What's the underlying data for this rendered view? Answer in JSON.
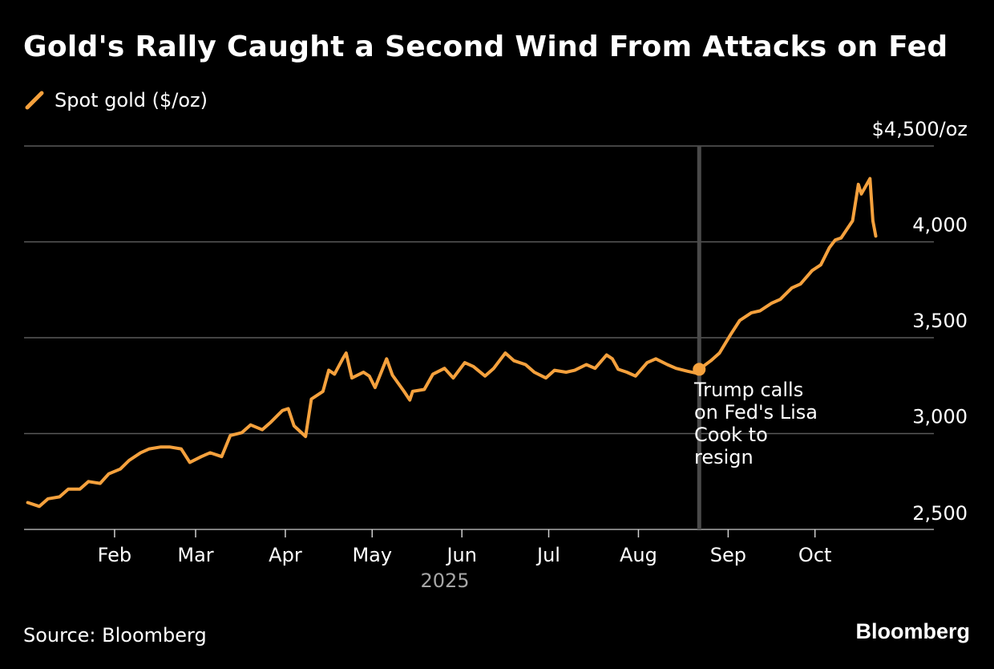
{
  "title": "Gold's Rally Caught a Second Wind From Attacks on Fed",
  "legend": {
    "label": "Spot gold ($/oz)"
  },
  "source": "Source: Bloomberg",
  "logo": "Bloomberg",
  "colors": {
    "line": "#f5a13d",
    "grid": "#5a5a5a",
    "marker": "#4a4a4a",
    "year": "#a6a6a6"
  },
  "chart_data": {
    "type": "line",
    "title": "Gold's Rally Caught a Second Wind From Attacks on Fed",
    "series": [
      {
        "name": "Spot gold ($/oz)",
        "x": [
          "2025-01-02",
          "2025-01-06",
          "2025-01-09",
          "2025-01-13",
          "2025-01-16",
          "2025-01-20",
          "2025-01-23",
          "2025-01-27",
          "2025-01-30",
          "2025-02-03",
          "2025-02-06",
          "2025-02-10",
          "2025-02-13",
          "2025-02-17",
          "2025-02-20",
          "2025-02-24",
          "2025-02-27",
          "2025-03-03",
          "2025-03-06",
          "2025-03-10",
          "2025-03-13",
          "2025-03-17",
          "2025-03-20",
          "2025-03-24",
          "2025-03-27",
          "2025-03-31",
          "2025-04-02",
          "2025-04-04",
          "2025-04-08",
          "2025-04-10",
          "2025-04-14",
          "2025-04-16",
          "2025-04-18",
          "2025-04-21",
          "2025-04-22",
          "2025-04-24",
          "2025-04-28",
          "2025-04-30",
          "2025-05-02",
          "2025-05-06",
          "2025-05-08",
          "2025-05-12",
          "2025-05-14",
          "2025-05-15",
          "2025-05-19",
          "2025-05-22",
          "2025-05-26",
          "2025-05-29",
          "2025-06-02",
          "2025-06-05",
          "2025-06-09",
          "2025-06-12",
          "2025-06-16",
          "2025-06-19",
          "2025-06-23",
          "2025-06-26",
          "2025-06-30",
          "2025-07-03",
          "2025-07-07",
          "2025-07-10",
          "2025-07-14",
          "2025-07-17",
          "2025-07-21",
          "2025-07-23",
          "2025-07-25",
          "2025-07-28",
          "2025-07-31",
          "2025-08-04",
          "2025-08-07",
          "2025-08-11",
          "2025-08-14",
          "2025-08-18",
          "2025-08-21",
          "2025-08-22",
          "2025-08-26",
          "2025-08-29",
          "2025-09-02",
          "2025-09-05",
          "2025-09-09",
          "2025-09-12",
          "2025-09-16",
          "2025-09-19",
          "2025-09-23",
          "2025-09-26",
          "2025-09-30",
          "2025-10-03",
          "2025-10-06",
          "2025-10-08",
          "2025-10-10",
          "2025-10-14",
          "2025-10-16",
          "2025-10-17",
          "2025-10-20",
          "2025-10-21",
          "2025-10-22"
        ],
        "values": [
          2640,
          2620,
          2660,
          2670,
          2710,
          2710,
          2750,
          2740,
          2790,
          2815,
          2860,
          2900,
          2920,
          2930,
          2930,
          2920,
          2850,
          2880,
          2900,
          2880,
          2990,
          3005,
          3045,
          3020,
          3060,
          3120,
          3130,
          3040,
          2985,
          3180,
          3220,
          3330,
          3310,
          3395,
          3420,
          3290,
          3320,
          3300,
          3240,
          3390,
          3305,
          3220,
          3175,
          3220,
          3230,
          3310,
          3340,
          3290,
          3370,
          3350,
          3300,
          3340,
          3420,
          3380,
          3360,
          3320,
          3290,
          3330,
          3320,
          3330,
          3360,
          3340,
          3410,
          3390,
          3335,
          3320,
          3300,
          3370,
          3390,
          3360,
          3340,
          3325,
          3315,
          3335,
          3380,
          3420,
          3520,
          3590,
          3630,
          3640,
          3680,
          3700,
          3760,
          3780,
          3850,
          3880,
          3970,
          4010,
          4020,
          4110,
          4300,
          4250,
          4330,
          4110,
          4030
        ]
      }
    ],
    "annotation": {
      "date": "2025-08-22",
      "value": 3335,
      "text": [
        "Trump calls",
        "on Fed's Lisa",
        "Cook to",
        "resign"
      ]
    },
    "y_ticks": [
      {
        "value": 4500,
        "label": "$4,500/oz"
      },
      {
        "value": 4000,
        "label": "4,000"
      },
      {
        "value": 3500,
        "label": "3,500"
      },
      {
        "value": 3000,
        "label": "3,000"
      },
      {
        "value": 2500,
        "label": "2,500"
      }
    ],
    "x_ticks": [
      {
        "date": "2025-02-01",
        "label": "Feb"
      },
      {
        "date": "2025-03-01",
        "label": "Mar"
      },
      {
        "date": "2025-04-01",
        "label": "Apr"
      },
      {
        "date": "2025-05-01",
        "label": "May"
      },
      {
        "date": "2025-06-01",
        "label": "Jun"
      },
      {
        "date": "2025-07-01",
        "label": "Jul"
      },
      {
        "date": "2025-08-01",
        "label": "Aug"
      },
      {
        "date": "2025-09-01",
        "label": "Sep"
      },
      {
        "date": "2025-10-01",
        "label": "Oct"
      }
    ],
    "year_label": "2025",
    "ylim": [
      2500,
      4500
    ],
    "xlim": [
      "2025-01-01",
      "2025-10-31"
    ],
    "grid": true,
    "legend_position": "top-left"
  }
}
